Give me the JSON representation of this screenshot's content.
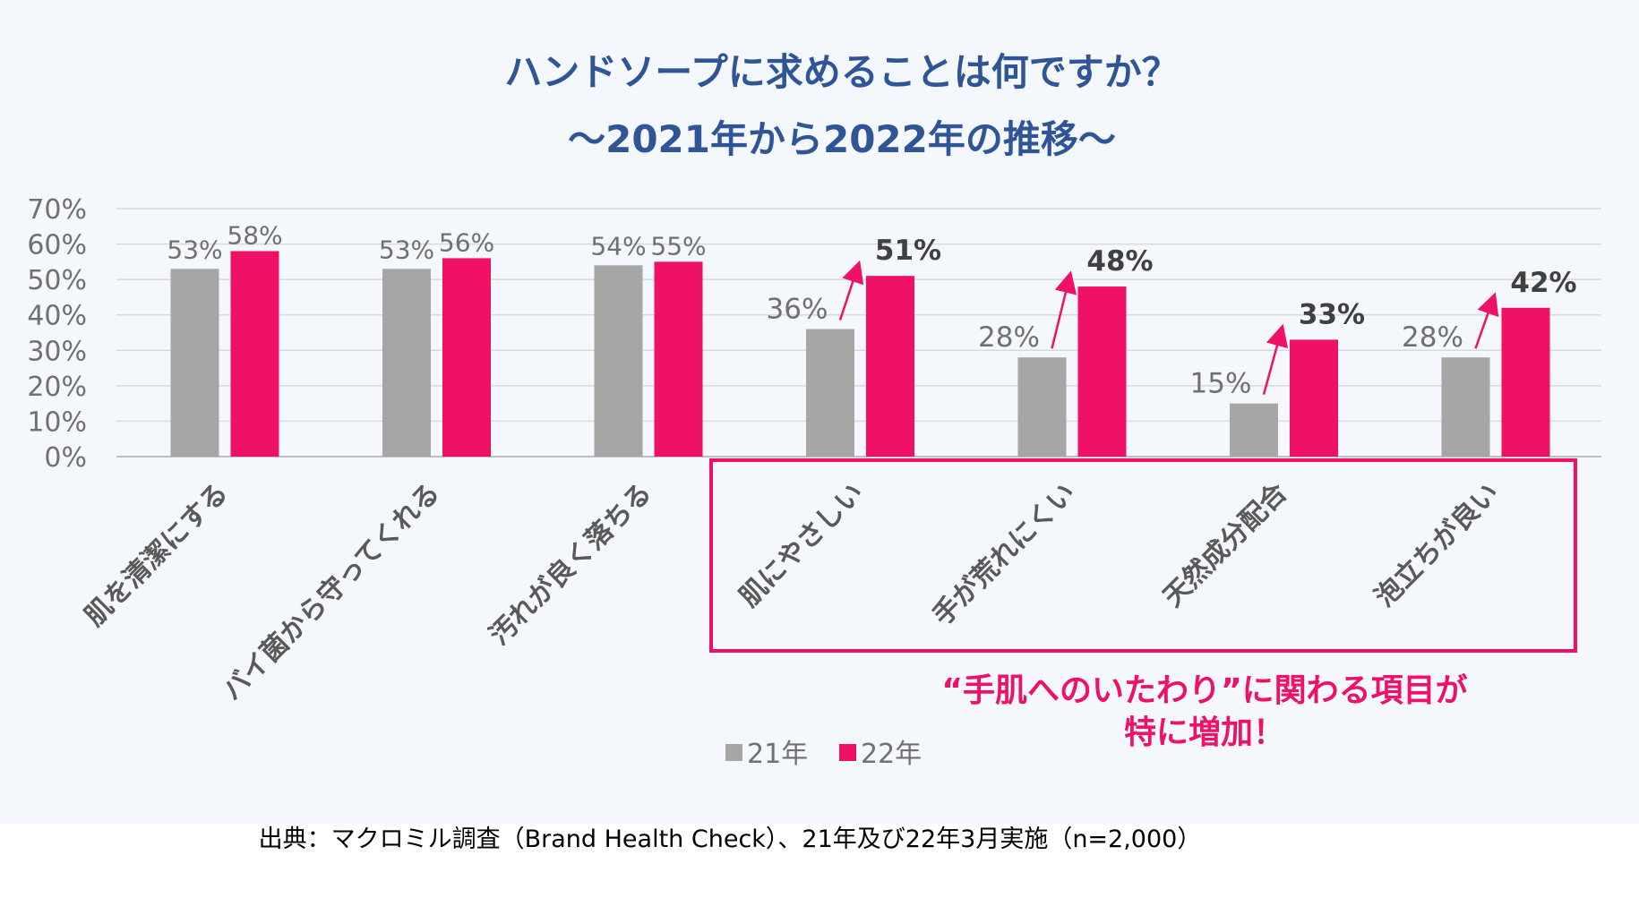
{
  "chart_data": {
    "type": "bar",
    "title": "ハンドソープに求めることは何ですか？",
    "subtitle": "～2021年から2022年の推移～",
    "categories": [
      "肌を清潔にする",
      "バイ菌から守ってくれる",
      "汚れが良く落ちる",
      "肌にやさしい",
      "手が荒れにくい",
      "天然成分配合",
      "泡立ちが良い"
    ],
    "series": [
      {
        "name": "21年",
        "values": [
          53,
          53,
          54,
          36,
          28,
          15,
          28
        ],
        "color": "#a6a6a6"
      },
      {
        "name": "22年",
        "values": [
          58,
          56,
          55,
          51,
          48,
          33,
          42
        ],
        "color": "#ee1166"
      }
    ],
    "value_labels": {
      "21年": [
        "53%",
        "53%",
        "54%",
        "36%",
        "28%",
        "15%",
        "28%"
      ],
      "22年": [
        "58%",
        "56%",
        "55%",
        "51%",
        "48%",
        "33%",
        "42%"
      ]
    },
    "ylim": [
      0,
      70
    ],
    "yticks": [
      0,
      10,
      20,
      30,
      40,
      50,
      60,
      70
    ],
    "ytick_labels": [
      "0%",
      "10%",
      "20%",
      "30%",
      "40%",
      "50%",
      "60%",
      "70%"
    ],
    "grid": true,
    "legend_position": "bottom",
    "highlighted_categories": [
      3,
      4,
      5,
      6
    ],
    "annotation": [
      "“手肌へのいたわり”に関わる項目が",
      "特に増加！"
    ],
    "source_note": "出典：マクロミル調査（Brand Health Check）、21年及び22年3月実施（n=2,000）"
  },
  "colors": {
    "title": "#2f5597",
    "panel_bg": "#f4f7fc",
    "accent": "#ee1166",
    "grey_bar": "#a6a6a6",
    "axis_text": "#707070",
    "grid": "#d9d9d9"
  }
}
